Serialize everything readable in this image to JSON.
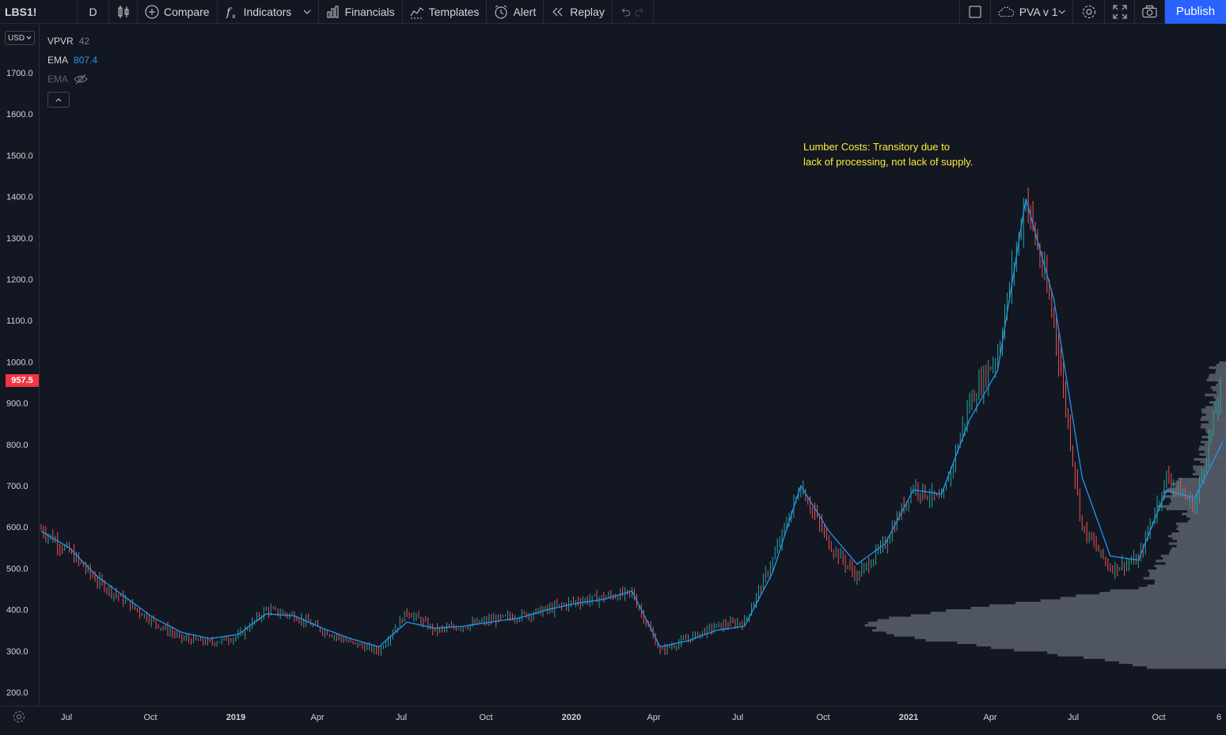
{
  "toolbar": {
    "symbol": "LBS1!",
    "interval": "D",
    "compare_label": "Compare",
    "indicators_label": "Indicators",
    "financials_label": "Financials",
    "templates_label": "Templates",
    "alert_label": "Alert",
    "replay_label": "Replay",
    "layout_name": "PVA v 1",
    "publish_label": "Publish",
    "icons": [
      "candles-icon",
      "plus-circle-icon",
      "fx-icon",
      "financials-icon",
      "templates-icon",
      "alarm-icon",
      "replay-icon",
      "undo-icon",
      "redo-icon",
      "square-icon",
      "cloud-icon",
      "gear-icon",
      "fullscreen-icon",
      "camera-icon"
    ]
  },
  "legend": {
    "vpvr_name": "VPVR",
    "vpvr_value": "42",
    "ema1_name": "EMA",
    "ema1_value": "807.4",
    "ema2_name": "EMA"
  },
  "currency": "USD",
  "last_price_label": "957.5",
  "annotation": {
    "line1": "Lumber Costs: Transitory due to",
    "line2": "lack of processing, not lack of supply."
  },
  "colors": {
    "background": "#131722",
    "up": "#26a69a",
    "down": "#ef5350",
    "ema": "#2196f3",
    "annotation": "#ffeb3b",
    "price_tag": "#f23645",
    "volume_profile": "#5d6170"
  },
  "chart_data": {
    "type": "line",
    "title": "",
    "y_ticks": [
      "200.0",
      "300.0",
      "400.0",
      "500.0",
      "600.0",
      "700.0",
      "800.0",
      "900.0",
      "1000.0",
      "1100.0",
      "1200.0",
      "1300.0",
      "1400.0",
      "1500.0",
      "1600.0",
      "1700.0"
    ],
    "x_ticks": [
      "Jul",
      "Oct",
      "2019",
      "Apr",
      "Jul",
      "Oct",
      "2020",
      "Apr",
      "Jul",
      "Oct",
      "2021",
      "Apr",
      "Jul",
      "Oct",
      "6"
    ],
    "ylim": [
      180,
      1810
    ],
    "x": [
      "2018-06",
      "2018-07",
      "2018-08",
      "2018-09",
      "2018-10",
      "2018-11",
      "2018-12",
      "2019-01",
      "2019-02",
      "2019-03",
      "2019-04",
      "2019-05",
      "2019-06",
      "2019-07",
      "2019-08",
      "2019-09",
      "2019-10",
      "2019-11",
      "2019-12",
      "2020-01",
      "2020-02",
      "2020-03",
      "2020-04",
      "2020-05",
      "2020-06",
      "2020-07",
      "2020-08",
      "2020-09",
      "2020-10",
      "2020-11",
      "2020-12",
      "2021-01",
      "2021-02",
      "2021-03",
      "2021-04",
      "2021-05",
      "2021-06",
      "2021-07",
      "2021-08",
      "2021-09",
      "2021-10",
      "2021-11",
      "2021-12"
    ],
    "series": [
      {
        "values": [
          595,
          540,
          470,
          420,
          370,
          330,
          320,
          335,
          400,
          385,
          350,
          320,
          300,
          395,
          350,
          360,
          375,
          385,
          400,
          420,
          430,
          440,
          300,
          330,
          360,
          370,
          520,
          700,
          560,
          480,
          560,
          700,
          660,
          900,
          1020,
          1400,
          1100,
          600,
          500,
          520,
          720,
          650,
          960
        ]
      },
      {
        "values": [
          590,
          550,
          480,
          430,
          380,
          345,
          330,
          340,
          390,
          385,
          355,
          330,
          310,
          370,
          355,
          360,
          370,
          380,
          400,
          415,
          425,
          445,
          310,
          325,
          350,
          360,
          490,
          700,
          590,
          510,
          560,
          690,
          680,
          860,
          980,
          1395,
          1150,
          720,
          530,
          520,
          690,
          670,
          807
        ]
      }
    ],
    "volume_profile_peak": "360.0"
  }
}
